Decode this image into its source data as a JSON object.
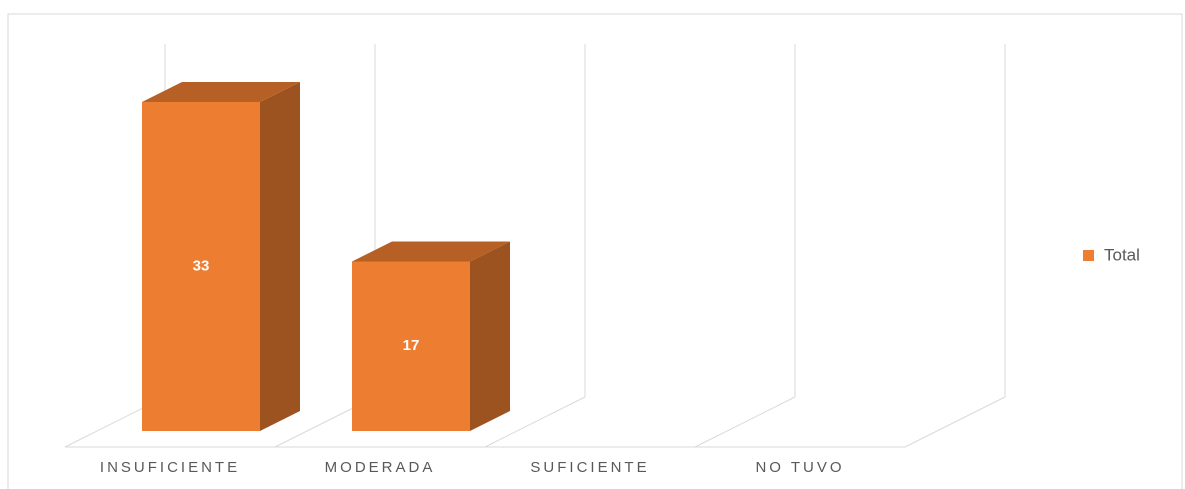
{
  "chart_data": {
    "type": "bar3d",
    "categories": [
      "INSUFICIENTE",
      "MODERADA",
      "SUFICIENTE",
      "NO TUVO"
    ],
    "series": [
      {
        "name": "Total",
        "color": "#ED7D31",
        "values": [
          33,
          17,
          null,
          null
        ]
      }
    ],
    "ylim": [
      0,
      35
    ],
    "legend": "right"
  }
}
